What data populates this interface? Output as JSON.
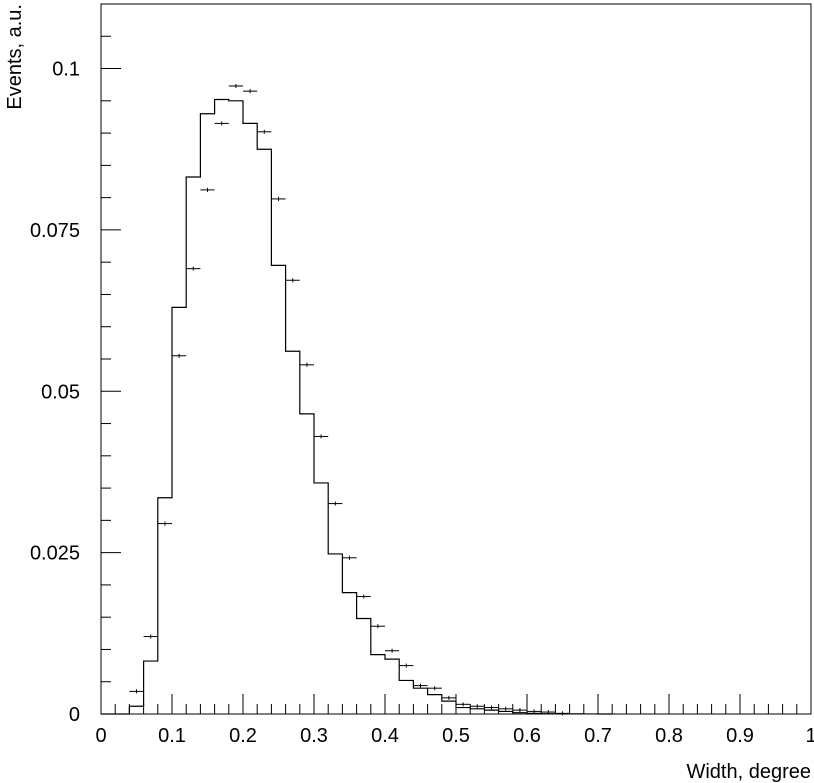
{
  "chart_data": {
    "type": "histogram",
    "xlabel": "Width, degree",
    "ylabel": "Events, a.u.",
    "xlim": [
      0,
      1
    ],
    "ylim": [
      0,
      0.11
    ],
    "grid": false,
    "x_ticks": [
      "0",
      "0.1",
      "0.2",
      "0.3",
      "0.4",
      "0.5",
      "0.6",
      "0.7",
      "0.8",
      "0.9",
      "1"
    ],
    "y_ticks": [
      "0",
      "0.025",
      "0.05",
      "0.075",
      "0.1"
    ],
    "bin_width": 0.02,
    "histogram": {
      "bins_start": [
        0.0,
        0.02,
        0.04,
        0.06,
        0.08,
        0.1,
        0.12,
        0.14,
        0.16,
        0.18,
        0.2,
        0.22,
        0.24,
        0.26,
        0.28,
        0.3,
        0.32,
        0.34,
        0.36,
        0.38,
        0.4,
        0.42,
        0.44,
        0.46,
        0.48,
        0.5,
        0.52,
        0.54,
        0.56,
        0.58,
        0.6,
        0.62,
        0.64,
        0.66,
        0.68,
        0.7
      ],
      "values": [
        0.0,
        0.0,
        0.0012,
        0.0082,
        0.0335,
        0.063,
        0.0832,
        0.093,
        0.0952,
        0.095,
        0.0915,
        0.0875,
        0.0695,
        0.0562,
        0.0465,
        0.0358,
        0.0248,
        0.0188,
        0.0148,
        0.0092,
        0.0085,
        0.0052,
        0.004,
        0.003,
        0.002,
        0.001,
        0.0008,
        0.0006,
        0.0004,
        0.0002,
        0.0001,
        5e-05,
        3e-05,
        2e-05,
        1e-05,
        0.0
      ]
    },
    "points": {
      "x": [
        0.05,
        0.07,
        0.09,
        0.11,
        0.13,
        0.15,
        0.17,
        0.19,
        0.21,
        0.23,
        0.25,
        0.27,
        0.29,
        0.31,
        0.33,
        0.35,
        0.37,
        0.39,
        0.41,
        0.43,
        0.45,
        0.47,
        0.49,
        0.51,
        0.53,
        0.55,
        0.57,
        0.59,
        0.61,
        0.63,
        0.65
      ],
      "y": [
        0.0035,
        0.012,
        0.0295,
        0.0555,
        0.069,
        0.0812,
        0.0915,
        0.0973,
        0.0965,
        0.0902,
        0.0798,
        0.0672,
        0.0541,
        0.043,
        0.0326,
        0.0242,
        0.0182,
        0.0136,
        0.0098,
        0.0075,
        0.0044,
        0.004,
        0.0025,
        0.0015,
        0.0012,
        0.001,
        0.0008,
        0.0006,
        0.0004,
        0.0003,
        0.0001
      ]
    }
  }
}
